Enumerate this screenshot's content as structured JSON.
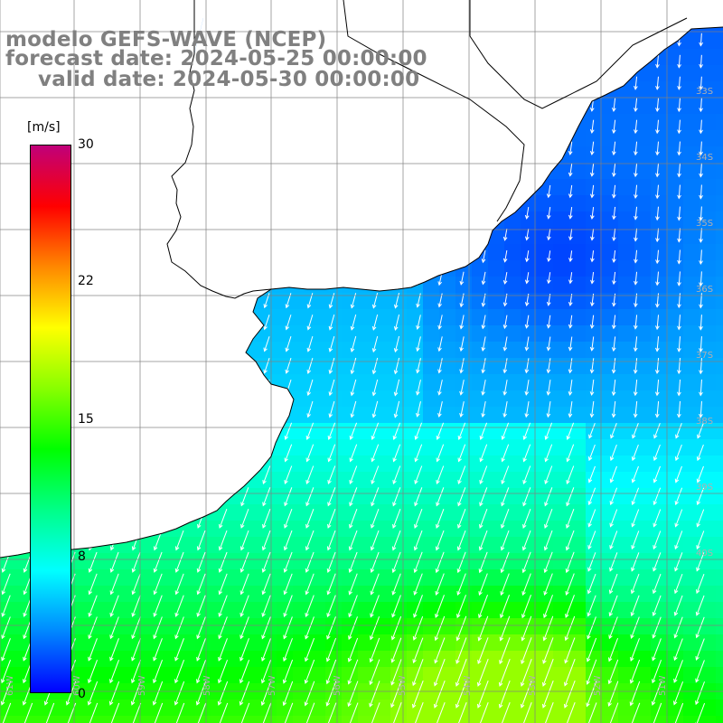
{
  "title": {
    "line1": "modelo GEFS-WAVE (NCEP)",
    "line2": "forecast date: 2024-05-25 00:00:00",
    "line3": "valid date: 2024-05-30 00:00:00"
  },
  "colorbar": {
    "unit": "[m/s]",
    "min": 0,
    "max": 30,
    "ticks": [
      "30",
      "22",
      "15",
      "8",
      "0"
    ],
    "tick_values": [
      30,
      22,
      15,
      8,
      0
    ],
    "colors": [
      "#0000ff",
      "#0088ff",
      "#00ffff",
      "#00ff88",
      "#00ff00",
      "#88ff00",
      "#ffff00",
      "#ff8800",
      "#ff0000",
      "#c0007a"
    ]
  },
  "map": {
    "variable": "wind speed and direction",
    "units": "m/s",
    "grid_lines": true,
    "longitude_labels": [
      "61W",
      "60W",
      "59W",
      "58W",
      "57W",
      "56W",
      "55W",
      "54W",
      "53W",
      "52W",
      "51W"
    ],
    "latitude_labels": [
      "33S",
      "34S",
      "35S",
      "36S",
      "37S",
      "38S",
      "39S",
      "40S"
    ],
    "land_color": "#ffffff",
    "coastline_color": "#000000"
  }
}
